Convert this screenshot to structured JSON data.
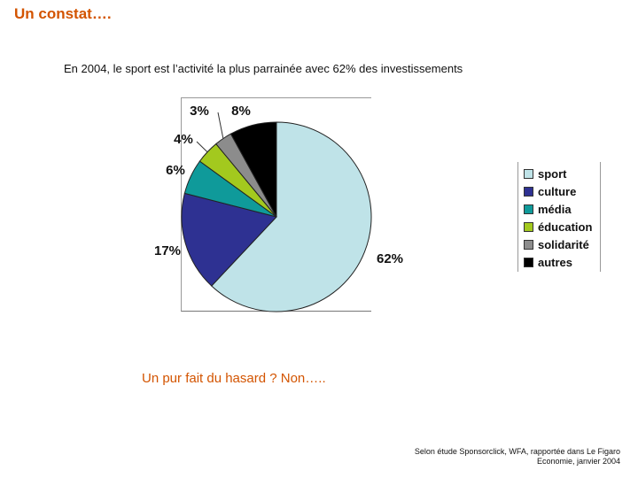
{
  "slide": {
    "title": "Un constat….",
    "subtitle": "En 2004, le sport est l’activité la plus parrainée avec 62% des investissements",
    "question": "Un pur fait du hasard ? Non…..",
    "source_line1": "Selon étude Sponsorclick, WFA, rapportée dans Le Figaro",
    "source_line2": "Economie, janvier 2004"
  },
  "chart_data": {
    "type": "pie",
    "title": "",
    "categories": [
      "sport",
      "culture",
      "média",
      "éducation",
      "solidarité",
      "autres"
    ],
    "values": [
      62,
      17,
      6,
      4,
      3,
      8
    ],
    "labels": [
      "62%",
      "17%",
      "6%",
      "4%",
      "3%",
      "8%"
    ],
    "colors": [
      "#bfe3e8",
      "#2e3192",
      "#0f9a9a",
      "#a3c91e",
      "#8c8c8c",
      "#000000"
    ],
    "legend": "right"
  }
}
